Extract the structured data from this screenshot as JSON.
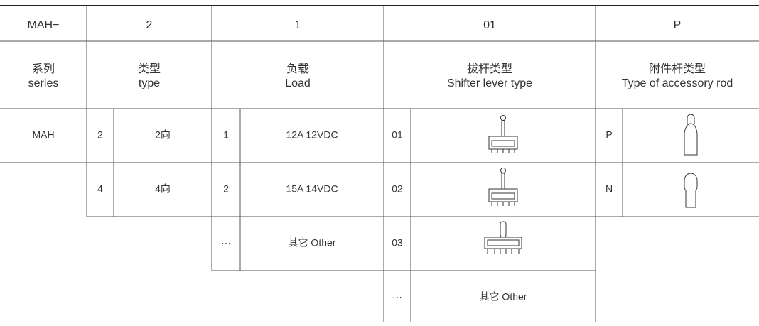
{
  "header": {
    "codes": [
      "MAH−",
      "2",
      "1",
      "01",
      "P"
    ],
    "labels": [
      {
        "cn": "系列",
        "en": "series"
      },
      {
        "cn": "类型",
        "en": "type"
      },
      {
        "cn": "负载",
        "en": "Load"
      },
      {
        "cn": "拔杆类型",
        "en": "Shifter lever type"
      },
      {
        "cn": "附件杆类型",
        "en": "Type of accessory rod"
      }
    ]
  },
  "series_options": [
    "MAH"
  ],
  "type_options": [
    {
      "code": "2",
      "label": "2向"
    },
    {
      "code": "4",
      "label": "4向"
    }
  ],
  "load_options": [
    {
      "code": "1",
      "label": "12A  12VDC"
    },
    {
      "code": "2",
      "label": "15A  14VDC"
    },
    {
      "code": "···",
      "label": "其它 Other"
    }
  ],
  "lever_options": [
    {
      "code": "01"
    },
    {
      "code": "02"
    },
    {
      "code": "03"
    },
    {
      "code": "···",
      "label": "其它 Other"
    }
  ],
  "rod_options": [
    {
      "code": "P"
    },
    {
      "code": "N"
    }
  ]
}
